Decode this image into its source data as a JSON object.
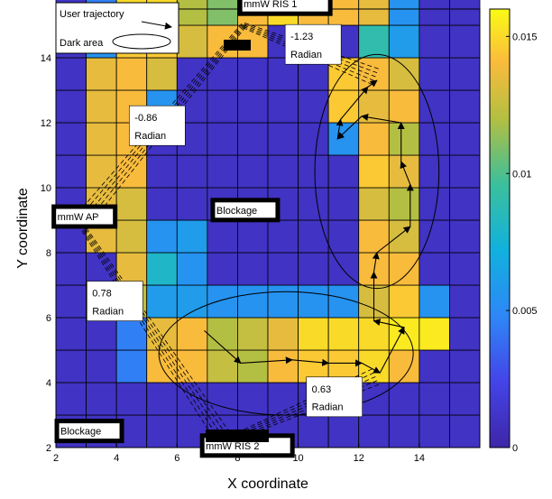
{
  "chart_data": {
    "type": "heatmap",
    "xlabel": "X coordinate",
    "ylabel": "Y coordinate",
    "xlim": [
      2,
      16
    ],
    "ylim": [
      2,
      15.5
    ],
    "x_ticks": [
      2,
      4,
      6,
      8,
      10,
      12,
      14
    ],
    "y_ticks": [
      2,
      4,
      6,
      8,
      10,
      12,
      14
    ],
    "colorbar": {
      "ticks": [
        0,
        0.005,
        0.01,
        0.015
      ],
      "tick_labels": [
        "0",
        "0.005",
        "0.01",
        "0.015"
      ],
      "range": [
        0,
        0.016
      ],
      "colormap": "parula"
    },
    "cell_size": 1,
    "grid_origin": [
      2,
      2
    ],
    "grid_values": [
      [
        0.001,
        0.001,
        0.001,
        0.001,
        0.001,
        0.001,
        0.001,
        0.001,
        0.001,
        0.001,
        0.001,
        0.001,
        0.001,
        0.001
      ],
      [
        0.001,
        0.001,
        0.001,
        0.001,
        0.001,
        0.001,
        0.001,
        0.001,
        0.001,
        0.001,
        0.001,
        0.001,
        0.001,
        0.001
      ],
      [
        0.001,
        0.001,
        0.0045,
        0.014,
        0.014,
        0.0125,
        0.012,
        0.014,
        0.0145,
        0.0145,
        0.015,
        0.014,
        0.001,
        0.001
      ],
      [
        0.001,
        0.001,
        0.0045,
        0.0135,
        0.014,
        0.012,
        0.0125,
        0.0135,
        0.015,
        0.015,
        0.015,
        0.0155,
        0.0155,
        0.001
      ],
      [
        0.001,
        0.001,
        0.0125,
        0.006,
        0.006,
        0.0055,
        0.0055,
        0.0055,
        0.0055,
        0.0055,
        0.013,
        0.0145,
        0.0055,
        0.001
      ],
      [
        0.001,
        0.001,
        0.0135,
        0.008,
        0.0055,
        0.001,
        0.001,
        0.001,
        0.001,
        0.001,
        0.014,
        0.014,
        0.001,
        0.001
      ],
      [
        0.001,
        0.0135,
        0.013,
        0.0055,
        0.006,
        0.001,
        0.001,
        0.001,
        0.001,
        0.001,
        0.014,
        0.013,
        0.001,
        0.001
      ],
      [
        0.001,
        0.0135,
        0.013,
        0.001,
        0.001,
        0.001,
        0.001,
        0.001,
        0.001,
        0.001,
        0.013,
        0.012,
        0.001,
        0.001
      ],
      [
        0.001,
        0.0135,
        0.014,
        0.001,
        0.001,
        0.001,
        0.001,
        0.001,
        0.001,
        0.001,
        0.0145,
        0.0135,
        0.001,
        0.001
      ],
      [
        0.001,
        0.0135,
        0.014,
        0.001,
        0.001,
        0.001,
        0.001,
        0.001,
        0.001,
        0.0055,
        0.014,
        0.012,
        0.001,
        0.001
      ],
      [
        0.001,
        0.0135,
        0.014,
        0.0055,
        0.001,
        0.001,
        0.001,
        0.001,
        0.001,
        0.0145,
        0.0135,
        0.014,
        0.001,
        0.001
      ],
      [
        0.001,
        0.0135,
        0.014,
        0.013,
        0.001,
        0.001,
        0.001,
        0.001,
        0.001,
        0.0145,
        0.014,
        0.013,
        0.001,
        0.001
      ],
      [
        0.001,
        0.0055,
        0.0145,
        0.0145,
        0.013,
        0.014,
        0.014,
        0.001,
        0.001,
        0.001,
        0.009,
        0.006,
        0.001,
        0.001
      ],
      [
        0.001,
        0.0045,
        0.015,
        0.015,
        0.012,
        0.011,
        0.014,
        0.015,
        0.014,
        0.014,
        0.0135,
        0.0055,
        0.001,
        0.001
      ]
    ],
    "annotations": [
      {
        "text": "mmW RIS 1",
        "x": 8.2,
        "y": 15.55
      },
      {
        "text": "-1.23",
        "x": 9.75,
        "y": 14.55
      },
      {
        "text": "Radian",
        "x": 9.75,
        "y": 14.0
      },
      {
        "text": "-0.86",
        "x": 4.6,
        "y": 12.05
      },
      {
        "text": "Radian",
        "x": 4.6,
        "y": 11.5
      },
      {
        "text": "mmW AP",
        "x": 2.05,
        "y": 9.0
      },
      {
        "text": "Blockage",
        "x": 7.3,
        "y": 9.2
      },
      {
        "text": "0.78",
        "x": 3.2,
        "y": 6.65
      },
      {
        "text": "Radian",
        "x": 3.2,
        "y": 6.1
      },
      {
        "text": "0.63",
        "x": 10.45,
        "y": 3.7
      },
      {
        "text": "Radian",
        "x": 10.45,
        "y": 3.15
      },
      {
        "text": "Blockage",
        "x": 2.15,
        "y": 2.4
      },
      {
        "text": "mmW RIS 2",
        "x": 6.95,
        "y": 1.95
      }
    ],
    "legend": {
      "placement": "top-left",
      "entries": [
        "User trajectory",
        "Dark area"
      ]
    },
    "trajectory": [
      [
        6.9,
        5.6
      ],
      [
        8.1,
        4.6
      ],
      [
        9.8,
        4.7
      ],
      [
        11.0,
        4.6
      ],
      [
        12.1,
        4.6
      ],
      [
        12.7,
        4.3
      ],
      [
        13.5,
        5.7
      ],
      [
        12.5,
        5.9
      ],
      [
        12.5,
        7.4
      ],
      [
        12.6,
        8.0
      ],
      [
        13.7,
        8.8
      ],
      [
        13.7,
        10.1
      ],
      [
        13.4,
        10.8
      ],
      [
        13.4,
        12.0
      ],
      [
        12.1,
        12.2
      ],
      [
        11.3,
        11.5
      ],
      [
        11.4,
        12.1
      ],
      [
        12.3,
        13.1
      ],
      [
        12.6,
        13.3
      ]
    ],
    "beams": [
      {
        "from": [
          8.2,
          15.0
        ],
        "to": [
          12.6,
          13.4
        ]
      },
      {
        "from": [
          8.2,
          15.0
        ],
        "to": [
          2.8,
          8.9
        ]
      },
      {
        "from": [
          2.8,
          8.9
        ],
        "to": [
          7.6,
          2.2
        ]
      },
      {
        "from": [
          7.6,
          2.2
        ],
        "to": [
          12.6,
          4.2
        ]
      }
    ],
    "dark_areas": [
      {
        "cx": 12.6,
        "cy": 10.5,
        "rx": 2.05,
        "ry": 3.6
      },
      {
        "cx": 9.6,
        "cy": 4.9,
        "rx": 4.2,
        "ry": 1.9
      }
    ]
  }
}
